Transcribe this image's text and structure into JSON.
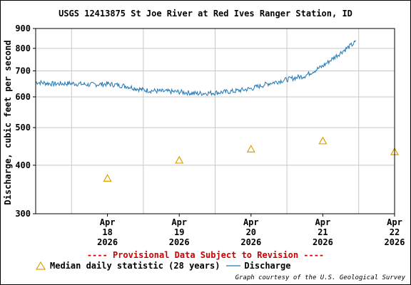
{
  "chart_data": {
    "type": "line",
    "title": "USGS 12413875 St Joe River at Red Ives Ranger Station, ID",
    "ylabel": "Discharge, cubic feet per second",
    "yscale": "log",
    "ylim": [
      300,
      900
    ],
    "yticks": [
      300,
      400,
      500,
      600,
      700,
      800,
      900
    ],
    "xlim": [
      "2026-04-17T12:00",
      "2026-04-22T12:00"
    ],
    "xticks": [
      {
        "date": "2026-04-18",
        "label": [
          "Apr",
          "18",
          "2026"
        ]
      },
      {
        "date": "2026-04-19",
        "label": [
          "Apr",
          "19",
          "2026"
        ]
      },
      {
        "date": "2026-04-20",
        "label": [
          "Apr",
          "20",
          "2026"
        ]
      },
      {
        "date": "2026-04-21",
        "label": [
          "Apr",
          "21",
          "2026"
        ]
      },
      {
        "date": "2026-04-22",
        "label": [
          "Apr",
          "22",
          "2026"
        ]
      }
    ],
    "grid": true,
    "series": [
      {
        "name": "Discharge",
        "color": "#1f77b4",
        "points": [
          [
            "2026-04-17T12:00",
            655
          ],
          [
            "2026-04-17T18:00",
            648
          ],
          [
            "2026-04-18T00:00",
            650
          ],
          [
            "2026-04-18T06:00",
            645
          ],
          [
            "2026-04-18T12:00",
            648
          ],
          [
            "2026-04-18T18:00",
            640
          ],
          [
            "2026-04-19T00:00",
            625
          ],
          [
            "2026-04-19T06:00",
            620
          ],
          [
            "2026-04-19T12:00",
            618
          ],
          [
            "2026-04-19T18:00",
            612
          ],
          [
            "2026-04-20T00:00",
            615
          ],
          [
            "2026-04-20T06:00",
            620
          ],
          [
            "2026-04-20T12:00",
            630
          ],
          [
            "2026-04-20T18:00",
            650
          ],
          [
            "2026-04-21T00:00",
            665
          ],
          [
            "2026-04-21T06:00",
            680
          ],
          [
            "2026-04-21T12:00",
            720
          ],
          [
            "2026-04-21T18:00",
            780
          ],
          [
            "2026-04-21T23:00",
            830
          ]
        ]
      },
      {
        "name": "Median daily statistic (28 years)",
        "color": "#e0a000",
        "marker": "triangle",
        "points": [
          [
            "2026-04-18",
            370
          ],
          [
            "2026-04-19",
            412
          ],
          [
            "2026-04-20",
            440
          ],
          [
            "2026-04-21",
            462
          ],
          [
            "2026-04-22",
            433
          ]
        ]
      }
    ]
  },
  "footer": {
    "provisional": "---- Provisional Data Subject to Revision ----",
    "provisional_color": "#cc0000",
    "legend_median": "Median daily statistic (28 years)",
    "legend_discharge": "Discharge",
    "credit": "Graph courtesy of the U.S. Geological Survey"
  }
}
